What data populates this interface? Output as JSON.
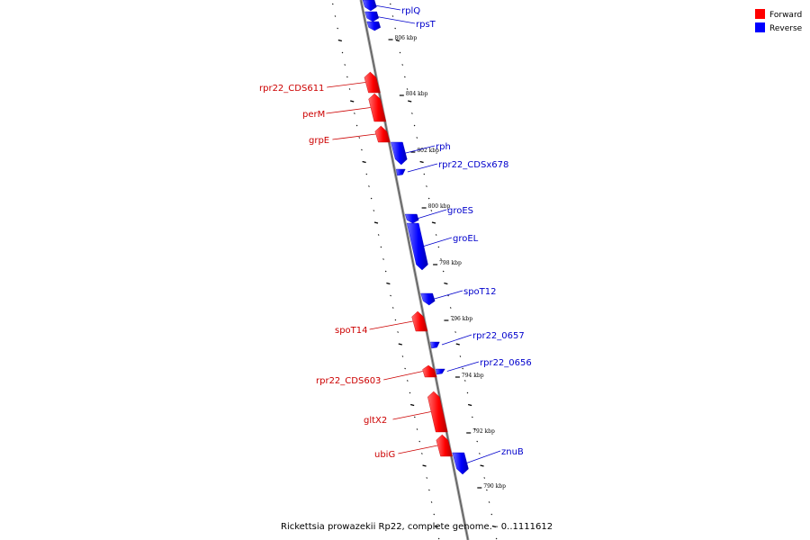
{
  "caption": "Rickettsia prowazekii Rp22, complete genome. - 0..1111612",
  "legend": [
    {
      "label": "Forward",
      "color": "#ff0000"
    },
    {
      "label": "Reverse",
      "color": "#0000ff"
    }
  ],
  "colors": {
    "forward": "#ff0000",
    "reverse": "#0000ff",
    "backbone": "#888888"
  },
  "ruler_labels": [
    "806 kbp",
    "804 kbp",
    "802 kbp",
    "800 kbp",
    "798 kbp",
    "796 kbp",
    "794 kbp",
    "792 kbp",
    "790 kbp"
  ],
  "genes": [
    {
      "name": "rplQ",
      "strand": "reverse"
    },
    {
      "name": "rpsT",
      "strand": "reverse"
    },
    {
      "name": "rpr22_CDS611",
      "strand": "forward"
    },
    {
      "name": "perM",
      "strand": "forward"
    },
    {
      "name": "grpE",
      "strand": "forward"
    },
    {
      "name": "rph",
      "strand": "reverse"
    },
    {
      "name": "rpr22_CDSx678",
      "strand": "reverse"
    },
    {
      "name": "groES",
      "strand": "reverse"
    },
    {
      "name": "groEL",
      "strand": "reverse"
    },
    {
      "name": "spoT12",
      "strand": "reverse"
    },
    {
      "name": "spoT14",
      "strand": "forward"
    },
    {
      "name": "rpr22_0657",
      "strand": "reverse"
    },
    {
      "name": "rpr22_0656",
      "strand": "reverse"
    },
    {
      "name": "rpr22_CDS603",
      "strand": "forward"
    },
    {
      "name": "gltX2",
      "strand": "forward"
    },
    {
      "name": "ubiG",
      "strand": "forward"
    },
    {
      "name": "znuB",
      "strand": "reverse"
    }
  ]
}
